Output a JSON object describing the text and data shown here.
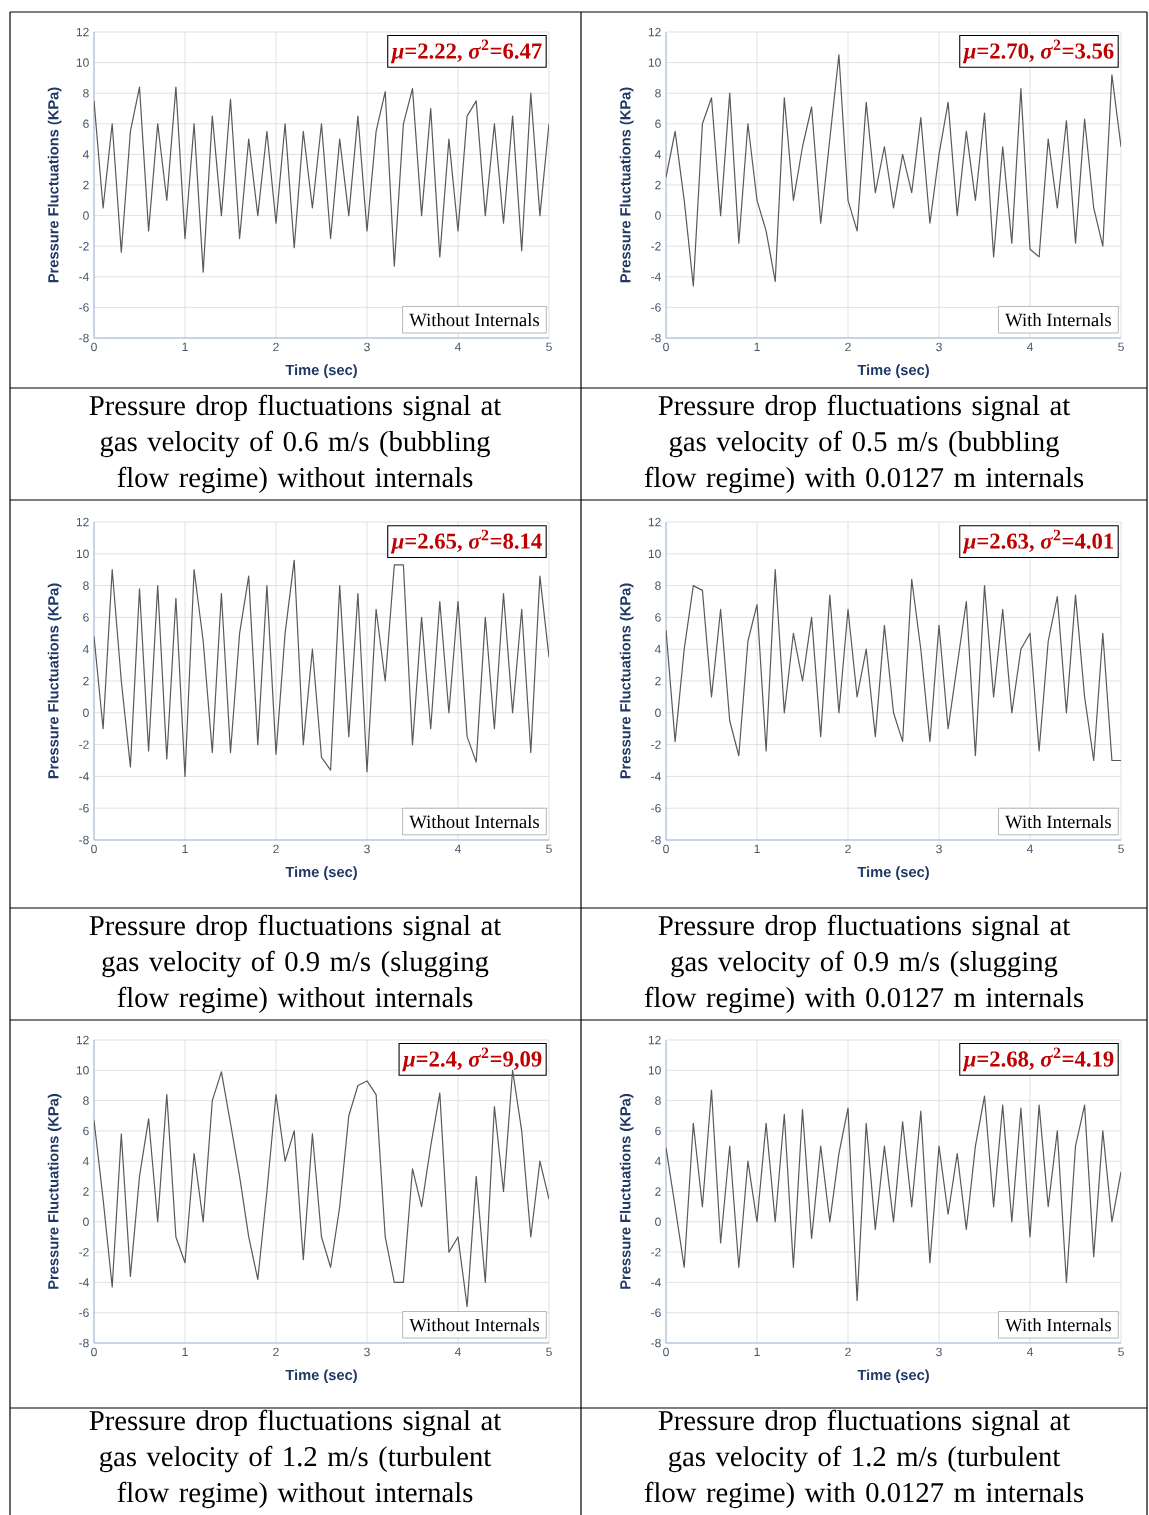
{
  "chart_data": [
    {
      "type": "line",
      "xlabel": "Time (sec)",
      "ylabel": "Pressure Fluctuations (KPa)",
      "annotations": [
        "*μ*=2.22, *σ*$^{2}$=6.47",
        "Without Internals",
        "Pressure drop fluctuations signal at gas velocity of 0.6 m/s (bubbling flow regime) without internals"
      ],
      "x": [
        0,
        0.1,
        0.2,
        0.3,
        0.4,
        0.5,
        0.6,
        0.7,
        0.8,
        0.9,
        1.0,
        1.1,
        1.2,
        1.3,
        1.4,
        1.5,
        1.6,
        1.7,
        1.8,
        1.9,
        2.0,
        2.1,
        2.2,
        2.3,
        2.4,
        2.5,
        2.6,
        2.7,
        2.8,
        2.9,
        3.0,
        3.1,
        3.2,
        3.3,
        3.4,
        3.5,
        3.6,
        3.7,
        3.8,
        3.9,
        4.0,
        4.1,
        4.2,
        4.3,
        4.4,
        4.5,
        4.6,
        4.7,
        4.8,
        4.9,
        5.0
      ],
      "series": [
        {
          "color": "#595959",
          "values": [
            7.5,
            0.5,
            6,
            -2.4,
            5.5,
            8.4,
            -1,
            6,
            1,
            8.4,
            -1.5,
            6,
            -3.7,
            6.5,
            0,
            7.6,
            -1.5,
            5,
            0,
            5.5,
            -0.5,
            6,
            -2.1,
            5.5,
            0.5,
            6,
            -1.5,
            5,
            0,
            6.5,
            -1,
            5.5,
            8.1,
            -3.3,
            6,
            8.3,
            0,
            7,
            -2.7,
            5,
            -1,
            6.5,
            7.5,
            0,
            6,
            -0.5,
            6.5,
            -2.3,
            8,
            0,
            6
          ]
        }
      ],
      "xlim": [
        0,
        5
      ],
      "ylim": [
        -8,
        12
      ],
      "xticks": [
        0,
        1,
        2,
        3,
        4,
        5
      ],
      "yticks": [
        -8,
        -6,
        -4,
        -2,
        0,
        2,
        4,
        6,
        8,
        10,
        12
      ],
      "grid": true
    },
    {
      "type": "line",
      "xlabel": "Time (sec)",
      "ylabel": "Pressure Fluctuations (KPa)",
      "annotations": [
        "*μ*=2.70, *σ*$^{2}$=3.56",
        "With Internals",
        "Pressure drop fluctuations signal at gas velocity of 0.5 m/s (bubbling flow regime) with 0.0127 m internals"
      ],
      "x": [
        0,
        0.1,
        0.2,
        0.3,
        0.4,
        0.5,
        0.6,
        0.7,
        0.8,
        0.9,
        1.0,
        1.1,
        1.2,
        1.3,
        1.4,
        1.5,
        1.6,
        1.7,
        1.8,
        1.9,
        2.0,
        2.1,
        2.2,
        2.3,
        2.4,
        2.5,
        2.6,
        2.7,
        2.8,
        2.9,
        3.0,
        3.1,
        3.2,
        3.3,
        3.4,
        3.5,
        3.6,
        3.7,
        3.8,
        3.9,
        4.0,
        4.1,
        4.2,
        4.3,
        4.4,
        4.5,
        4.6,
        4.7,
        4.8,
        4.9,
        5.0
      ],
      "series": [
        {
          "color": "#595959",
          "values": [
            2.5,
            5.5,
            1,
            -4.6,
            6,
            7.7,
            0,
            8,
            -1.8,
            6,
            1,
            -1,
            -4.3,
            7.7,
            1,
            4.5,
            7.1,
            -0.5,
            5,
            10.5,
            1,
            -1,
            7.4,
            1.5,
            4.5,
            0.5,
            4,
            1.5,
            6.4,
            -0.5,
            4,
            7.4,
            0,
            5.5,
            1,
            6.7,
            -2.7,
            4.5,
            -1.8,
            8.3,
            -2.2,
            -2.7,
            5,
            0.5,
            6.2,
            -1.8,
            6.3,
            0.5,
            -2,
            9.2,
            4.5
          ]
        }
      ],
      "xlim": [
        0,
        5
      ],
      "ylim": [
        -8,
        12
      ],
      "xticks": [
        0,
        1,
        2,
        3,
        4,
        5
      ],
      "yticks": [
        -8,
        -6,
        -4,
        -2,
        0,
        2,
        4,
        6,
        8,
        10,
        12
      ],
      "grid": true
    },
    {
      "type": "line",
      "xlabel": "Time (sec)",
      "ylabel": "Pressure Fluctuations (KPa)",
      "annotations": [
        "*μ*=2.65, *σ*$^{2}$=8.14",
        "Without Internals",
        "Pressure drop fluctuations signal at gas velocity of 0.9 m/s (slugging flow regime) without internals"
      ],
      "x": [
        0,
        0.1,
        0.2,
        0.3,
        0.4,
        0.5,
        0.6,
        0.7,
        0.8,
        0.9,
        1.0,
        1.1,
        1.2,
        1.3,
        1.4,
        1.5,
        1.6,
        1.7,
        1.8,
        1.9,
        2.0,
        2.1,
        2.2,
        2.3,
        2.4,
        2.5,
        2.6,
        2.7,
        2.8,
        2.9,
        3.0,
        3.1,
        3.2,
        3.3,
        3.4,
        3.5,
        3.6,
        3.7,
        3.8,
        3.9,
        4.0,
        4.1,
        4.2,
        4.3,
        4.4,
        4.5,
        4.6,
        4.7,
        4.8,
        4.9,
        5.0
      ],
      "series": [
        {
          "color": "#595959",
          "values": [
            4.8,
            -1,
            9,
            2,
            -3.4,
            7.8,
            -2.4,
            8,
            -2.9,
            7.2,
            -4,
            9,
            4.5,
            -2.5,
            7.5,
            -2.5,
            5,
            8.6,
            -2,
            8,
            -2.6,
            5,
            9.6,
            -2,
            4,
            -2.8,
            -3.6,
            8,
            -1.5,
            7.5,
            -3.7,
            6.5,
            2,
            9.3,
            9.3,
            -2,
            6,
            -1,
            7,
            0,
            7,
            -1.5,
            -3.1,
            6,
            -1,
            7.5,
            0,
            6.5,
            -2.5,
            8.6,
            3.5
          ]
        }
      ],
      "xlim": [
        0,
        5
      ],
      "ylim": [
        -8,
        12
      ],
      "xticks": [
        0,
        1,
        2,
        3,
        4,
        5
      ],
      "yticks": [
        -8,
        -6,
        -4,
        -2,
        0,
        2,
        4,
        6,
        8,
        10,
        12
      ],
      "grid": true
    },
    {
      "type": "line",
      "xlabel": "Time (sec)",
      "ylabel": "Pressure Fluctuations (KPa)",
      "annotations": [
        "*μ*=2.63, *σ*$^{2}$=4.01",
        "With Internals",
        "Pressure drop fluctuations signal at gas velocity of 0.9 m/s (slugging flow regime) with 0.0127 m internals"
      ],
      "x": [
        0,
        0.1,
        0.2,
        0.3,
        0.4,
        0.5,
        0.6,
        0.7,
        0.8,
        0.9,
        1.0,
        1.1,
        1.2,
        1.3,
        1.4,
        1.5,
        1.6,
        1.7,
        1.8,
        1.9,
        2.0,
        2.1,
        2.2,
        2.3,
        2.4,
        2.5,
        2.6,
        2.7,
        2.8,
        2.9,
        3.0,
        3.1,
        3.2,
        3.3,
        3.4,
        3.5,
        3.6,
        3.7,
        3.8,
        3.9,
        4.0,
        4.1,
        4.2,
        4.3,
        4.4,
        4.5,
        4.6,
        4.7,
        4.8,
        4.9,
        5.0
      ],
      "series": [
        {
          "color": "#595959",
          "values": [
            5.2,
            -1.8,
            4,
            8,
            7.7,
            1,
            6.5,
            -0.5,
            -2.7,
            4.5,
            6.8,
            -2.4,
            9,
            0,
            5,
            2,
            6,
            -1.5,
            7.4,
            0,
            6.5,
            1,
            4,
            -1.5,
            5.5,
            0,
            -1.8,
            8.4,
            4,
            -1.8,
            5.5,
            -1,
            3,
            7,
            -2.7,
            8,
            1,
            6.5,
            0,
            4,
            5,
            -2.4,
            4.5,
            7.3,
            0,
            7.4,
            1,
            -3,
            5,
            -3,
            -3
          ]
        }
      ],
      "xlim": [
        0,
        5
      ],
      "ylim": [
        -8,
        12
      ],
      "xticks": [
        0,
        1,
        2,
        3,
        4,
        5
      ],
      "yticks": [
        -8,
        -6,
        -4,
        -2,
        0,
        2,
        4,
        6,
        8,
        10,
        12
      ],
      "grid": true
    },
    {
      "type": "line",
      "xlabel": "Time (sec)",
      "ylabel": "Pressure Fluctuations (KPa)",
      "annotations": [
        "*μ*=2.4, *σ*$^{2}$=9,09",
        "Without Internals",
        "Pressure drop fluctuations signal at gas velocity of 1.2 m/s (turbulent flow regime) without internals"
      ],
      "x": [
        0,
        0.1,
        0.2,
        0.3,
        0.4,
        0.5,
        0.6,
        0.7,
        0.8,
        0.9,
        1.0,
        1.1,
        1.2,
        1.3,
        1.4,
        1.5,
        1.6,
        1.7,
        1.8,
        1.9,
        2.0,
        2.1,
        2.2,
        2.3,
        2.4,
        2.5,
        2.6,
        2.7,
        2.8,
        2.9,
        3.0,
        3.1,
        3.2,
        3.3,
        3.4,
        3.5,
        3.6,
        3.7,
        3.8,
        3.9,
        4.0,
        4.1,
        4.2,
        4.3,
        4.4,
        4.5,
        4.6,
        4.7,
        4.8,
        4.9,
        5.0
      ],
      "series": [
        {
          "color": "#595959",
          "values": [
            6.7,
            1.5,
            -4.3,
            5.8,
            -3.6,
            3,
            6.8,
            0,
            8.4,
            -1,
            -2.7,
            4.5,
            0,
            8,
            9.9,
            6.5,
            3,
            -1,
            -3.8,
            2,
            8.4,
            4,
            6,
            -2.5,
            5.8,
            -1,
            -3,
            1,
            7,
            9,
            9.3,
            8.4,
            -1,
            -4,
            -4,
            3.5,
            1,
            5,
            8.5,
            -2,
            -1,
            -5.6,
            3,
            -4,
            7.6,
            2,
            10,
            6,
            -1,
            4,
            1.5
          ]
        }
      ],
      "xlim": [
        0,
        5
      ],
      "ylim": [
        -8,
        12
      ],
      "xticks": [
        0,
        1,
        2,
        3,
        4,
        5
      ],
      "yticks": [
        -8,
        -6,
        -4,
        -2,
        0,
        2,
        4,
        6,
        8,
        10,
        12
      ],
      "grid": true
    },
    {
      "type": "line",
      "xlabel": "Time (sec)",
      "ylabel": "Pressure Fluctuations (KPa)",
      "annotations": [
        "*μ*=2.68, *σ*$^{2}$=4.19",
        "With Internals",
        "Pressure drop fluctuations signal at gas velocity of 1.2 m/s (turbulent flow regime) with 0.0127 m internals"
      ],
      "x": [
        0,
        0.1,
        0.2,
        0.3,
        0.4,
        0.5,
        0.6,
        0.7,
        0.8,
        0.9,
        1.0,
        1.1,
        1.2,
        1.3,
        1.4,
        1.5,
        1.6,
        1.7,
        1.8,
        1.9,
        2.0,
        2.1,
        2.2,
        2.3,
        2.4,
        2.5,
        2.6,
        2.7,
        2.8,
        2.9,
        3.0,
        3.1,
        3.2,
        3.3,
        3.4,
        3.5,
        3.6,
        3.7,
        3.8,
        3.9,
        4.0,
        4.1,
        4.2,
        4.3,
        4.4,
        4.5,
        4.6,
        4.7,
        4.8,
        4.9,
        5.0
      ],
      "series": [
        {
          "color": "#595959",
          "values": [
            4.9,
            1,
            -3,
            6.5,
            1,
            8.7,
            -1.4,
            5,
            -3,
            4,
            0,
            6.5,
            0,
            7.1,
            -3,
            7.4,
            -1.1,
            5,
            0,
            4.5,
            7.5,
            -5.2,
            6.5,
            -0.5,
            5,
            0,
            6.6,
            1,
            7.3,
            -2.7,
            5,
            0.5,
            4.5,
            -0.5,
            5,
            8.3,
            1,
            7.7,
            0,
            7.5,
            -1,
            7.7,
            1,
            6,
            -4,
            5,
            7.7,
            -2.3,
            6,
            0,
            3.3
          ]
        }
      ],
      "xlim": [
        0,
        5
      ],
      "ylim": [
        -8,
        12
      ],
      "xticks": [
        0,
        1,
        2,
        3,
        4,
        5
      ],
      "yticks": [
        -8,
        -6,
        -4,
        -2,
        0,
        2,
        4,
        6,
        8,
        10,
        12
      ],
      "grid": true
    }
  ]
}
